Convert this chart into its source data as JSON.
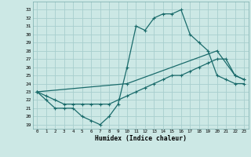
{
  "xlabel": "Humidex (Indice chaleur)",
  "background_color": "#cce8e5",
  "grid_color": "#a8cece",
  "line_color": "#1a6b6b",
  "xlim": [
    -0.5,
    23.5
  ],
  "ylim": [
    18.5,
    34.0
  ],
  "ytick_vals": [
    19,
    20,
    21,
    22,
    23,
    24,
    25,
    26,
    27,
    28,
    29,
    30,
    31,
    32,
    33
  ],
  "xtick_vals": [
    0,
    1,
    2,
    3,
    4,
    5,
    6,
    7,
    8,
    9,
    10,
    11,
    12,
    13,
    14,
    15,
    16,
    17,
    18,
    19,
    20,
    21,
    22,
    23
  ],
  "series1_x": [
    0,
    1,
    2,
    3,
    4,
    5,
    6,
    7,
    8,
    9,
    10,
    11,
    12,
    13,
    14,
    15,
    16,
    17,
    18,
    19,
    20,
    21,
    22,
    23
  ],
  "series1_y": [
    23,
    22,
    21,
    21,
    21,
    20,
    19.5,
    19,
    20,
    21.5,
    26,
    31,
    30.5,
    32,
    32.5,
    32.5,
    33,
    30,
    29,
    28,
    25,
    24.5,
    24,
    24
  ],
  "series2_x": [
    0,
    1,
    2,
    3,
    4,
    5,
    6,
    7,
    8,
    9,
    10,
    11,
    12,
    13,
    14,
    15,
    16,
    17,
    18,
    19,
    20,
    21,
    22,
    23
  ],
  "series2_y": [
    23,
    22.5,
    22,
    21.5,
    21.5,
    21.5,
    21.5,
    21.5,
    21.5,
    22,
    22.5,
    23,
    23.5,
    24,
    24.5,
    25,
    25,
    25.5,
    26,
    26.5,
    27,
    27,
    25,
    24.5
  ],
  "series3_x": [
    0,
    10,
    20,
    22,
    23
  ],
  "series3_y": [
    23,
    24,
    28,
    25,
    24.5
  ]
}
